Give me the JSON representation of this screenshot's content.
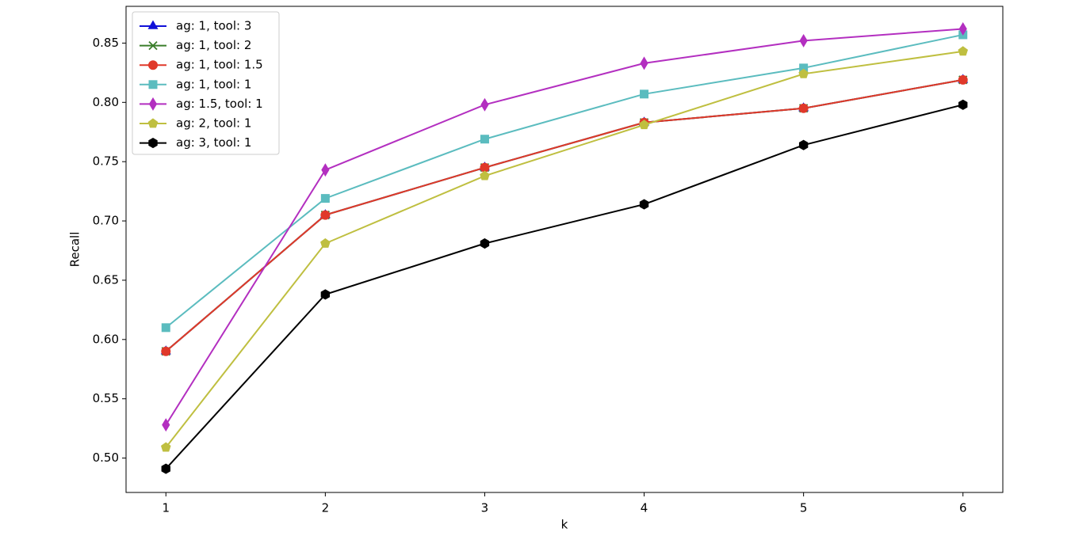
{
  "chart_data": {
    "type": "line",
    "xlabel": "k",
    "ylabel": "Recall",
    "x": [
      1,
      2,
      3,
      4,
      5,
      6
    ],
    "xlim": [
      0.75,
      6.25
    ],
    "xticks": [
      1,
      2,
      3,
      4,
      5,
      6
    ],
    "ylim": [
      0.471,
      0.881
    ],
    "yticks": [
      {
        "value": 0.5,
        "label": "0.50"
      },
      {
        "value": 0.55,
        "label": "0.55"
      },
      {
        "value": 0.6,
        "label": "0.60"
      },
      {
        "value": 0.65,
        "label": "0.65"
      },
      {
        "value": 0.7,
        "label": "0.70"
      },
      {
        "value": 0.75,
        "label": "0.75"
      },
      {
        "value": 0.8,
        "label": "0.80"
      },
      {
        "value": 0.85,
        "label": "0.85"
      }
    ],
    "legend": "upper left",
    "series": [
      {
        "name": "ag: 1, tool: 3",
        "color": "#1010d8",
        "marker": "triangle",
        "values": [
          0.59,
          0.705,
          0.745,
          0.783,
          0.795,
          0.819
        ]
      },
      {
        "name": "ag: 1, tool: 2",
        "color": "#3a7d2a",
        "marker": "x",
        "values": [
          0.59,
          0.705,
          0.745,
          0.783,
          0.795,
          0.819
        ]
      },
      {
        "name": "ag: 1, tool: 1.5",
        "color": "#e0392a",
        "marker": "circle",
        "values": [
          0.59,
          0.705,
          0.745,
          0.783,
          0.795,
          0.819
        ]
      },
      {
        "name": "ag: 1, tool: 1",
        "color": "#5bbcbf",
        "marker": "square",
        "values": [
          0.61,
          0.719,
          0.769,
          0.807,
          0.829,
          0.857
        ]
      },
      {
        "name": "ag: 1.5, tool: 1",
        "color": "#b32fc0",
        "marker": "diamond",
        "values": [
          0.528,
          0.743,
          0.798,
          0.833,
          0.852,
          0.862
        ]
      },
      {
        "name": "ag: 2, tool: 1",
        "color": "#bfbf40",
        "marker": "pentagon",
        "values": [
          0.509,
          0.681,
          0.738,
          0.781,
          0.824,
          0.843
        ]
      },
      {
        "name": "ag: 3, tool: 1",
        "color": "#000000",
        "marker": "hexagon",
        "values": [
          0.491,
          0.638,
          0.681,
          0.714,
          0.764,
          0.798
        ]
      }
    ]
  }
}
